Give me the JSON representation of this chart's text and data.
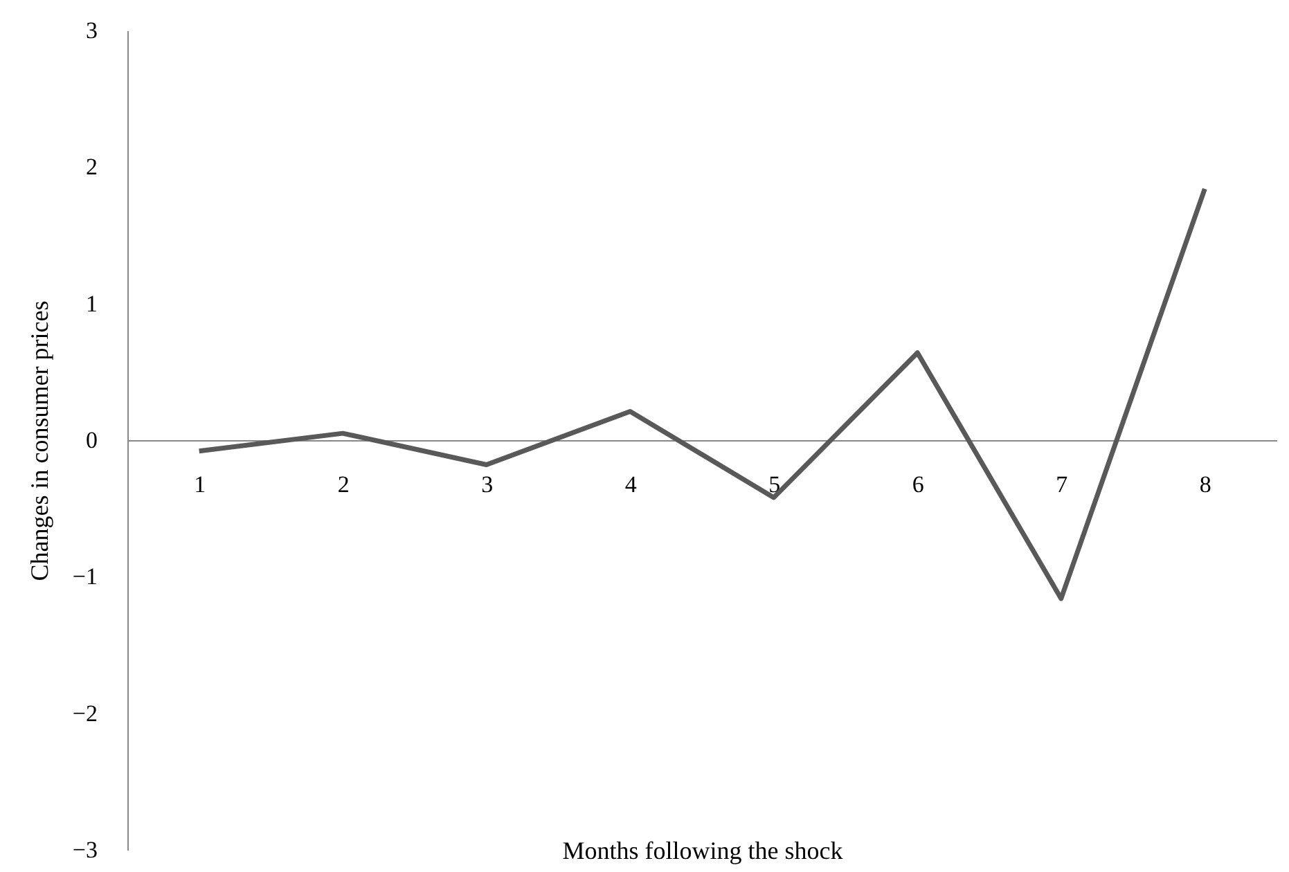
{
  "chart_data": {
    "type": "line",
    "xlabel": "Months following the shock",
    "ylabel": "Changes in consumer prices",
    "categories": [
      "1",
      "2",
      "3",
      "4",
      "5",
      "6",
      "7",
      "8"
    ],
    "series": [
      {
        "color": "#595959",
        "values": [
          -0.08,
          0.05,
          -0.18,
          0.21,
          -0.42,
          0.64,
          -1.16,
          1.84
        ]
      }
    ],
    "ylim": [
      -3,
      3
    ],
    "yticks": [
      -3,
      -2,
      -1,
      0,
      1,
      2,
      3
    ],
    "grid": false,
    "marker": "none",
    "line_style": "solid"
  }
}
